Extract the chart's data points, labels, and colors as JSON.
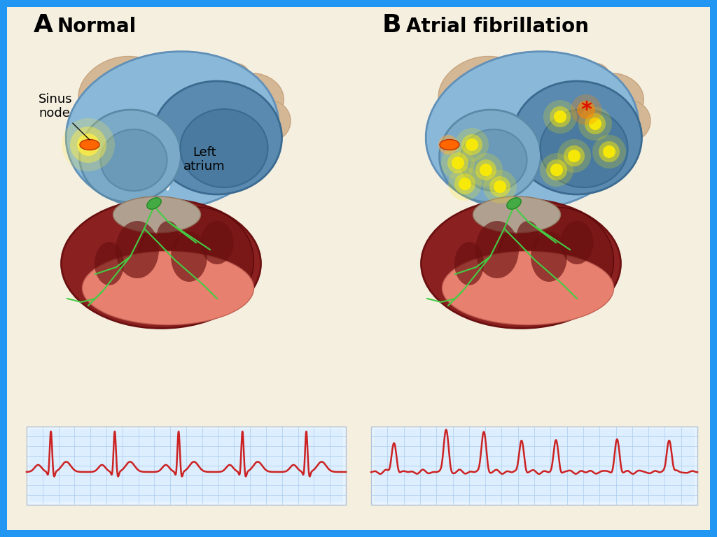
{
  "border_color": "#2196F3",
  "border_width": 12,
  "bg_color": "#e8dcc8",
  "panel_bg": "#f5efe0",
  "ecg_bg": "#ddeeff",
  "ecg_grid_color": "#aaccee",
  "ecg_line_color": "#cc2222",
  "label_A": "A",
  "label_B": "B",
  "title_A": "Normal",
  "title_B": "Atrial fibrillation",
  "label_sinus": "Sinus\nnode",
  "label_left_atrium": "Left\natrium",
  "title_fontsize": 20,
  "label_fontsize": 14,
  "annotation_fontsize": 13
}
